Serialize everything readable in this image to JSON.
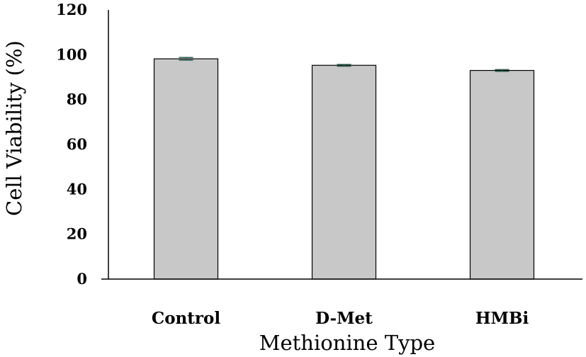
{
  "chart_data": {
    "type": "bar",
    "categories": [
      "Control",
      "D-Met",
      "HMBi"
    ],
    "values": [
      98.2,
      95.3,
      93.0
    ],
    "errors": [
      0.6,
      0.4,
      0.4
    ],
    "xlabel": "Methionine Type",
    "ylabel": "Cell Viability (%)",
    "ylim": [
      0,
      120
    ],
    "yticks": [
      "0",
      "20",
      "40",
      "60",
      "80",
      "100",
      "120"
    ],
    "grid": false,
    "bar_color": "#c8c8c8",
    "bar_edge_color": "#000000",
    "error_bar_color": "#2f5d50"
  }
}
